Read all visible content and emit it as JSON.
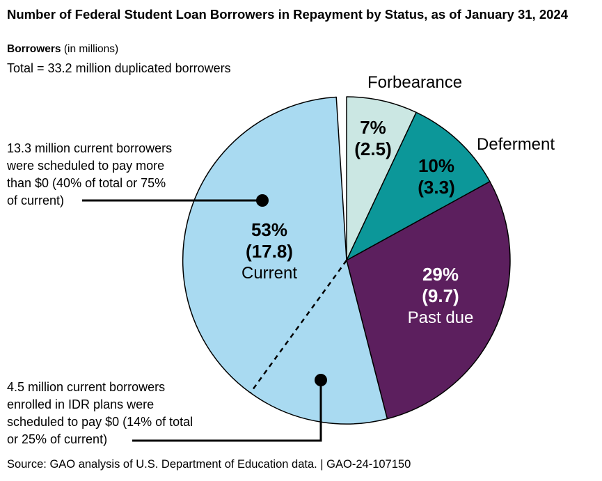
{
  "header": {
    "title": "Number of Federal Student Loan Borrowers in Repayment by Status, as of January 31, 2024",
    "axis_label_bold": "Borrowers",
    "axis_label_rest": " (in millions)",
    "total_line": "Total = 33.2 million duplicated borrowers"
  },
  "chart_data": {
    "type": "pie",
    "title": "Number of Federal Student Loan Borrowers in Repayment by Status, as of January 31, 2024",
    "units": "millions of borrowers",
    "total_millions": 33.2,
    "start_angle": "12 o'clock",
    "direction": "clockwise",
    "slices": [
      {
        "label": "Forbearance",
        "percent": 7,
        "value_millions": 2.5,
        "pct_label": "7%",
        "value_label": "(2.5)",
        "color": "#cbe7e3",
        "text_color": "#000000",
        "name_placement": "outside"
      },
      {
        "label": "Deferment",
        "percent": 10,
        "value_millions": 3.3,
        "pct_label": "10%",
        "value_label": "(3.3)",
        "color": "#0c9799",
        "text_color": "#000000",
        "name_placement": "outside"
      },
      {
        "label": "Past due",
        "percent": 29,
        "value_millions": 9.7,
        "pct_label": "29%",
        "value_label": "(9.7)",
        "color": "#5c1f5e",
        "text_color": "#ffffff",
        "name_placement": "inside"
      },
      {
        "label": "Current",
        "percent": 53,
        "value_millions": 17.8,
        "pct_label": "53%",
        "value_label": "(17.8)",
        "color": "#a9daf1",
        "text_color": "#000000",
        "name_placement": "inside"
      }
    ],
    "current_split": {
      "pay_more_than_zero": {
        "millions": 13.3,
        "pct_of_total": 40,
        "pct_of_current": 75
      },
      "pay_zero_idr": {
        "millions": 4.5,
        "pct_of_total": 14,
        "pct_of_current": 25
      }
    },
    "divider_style": "dashed line splitting Current slice"
  },
  "annotations": {
    "pay_more": {
      "lines": [
        "13.3 million current borrowers",
        "were scheduled to pay more",
        "than $0 (40% of total or 75%",
        "of current)"
      ]
    },
    "pay_zero": {
      "lines": [
        "4.5 million current borrowers",
        "enrolled in IDR plans were",
        "scheduled to pay $0 (14% of total",
        "or 25% of current)"
      ]
    }
  },
  "footer": {
    "source": "Source: GAO analysis of U.S. Department of Education data.  |  GAO-24-107150"
  }
}
